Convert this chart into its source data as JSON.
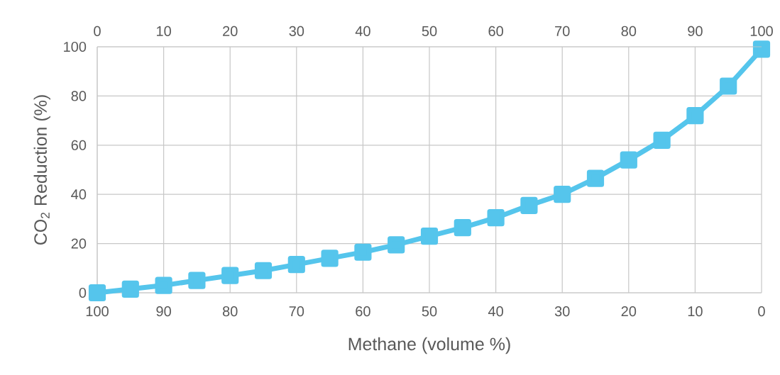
{
  "chart_data": {
    "type": "line",
    "xlabel": "Methane (volume %)",
    "ylabel": "CO$_{2}$ Reduction (%)",
    "x": [
      100,
      95,
      90,
      85,
      80,
      75,
      70,
      65,
      60,
      55,
      50,
      45,
      40,
      35,
      30,
      25,
      20,
      15,
      10,
      5,
      0
    ],
    "series": [
      {
        "color": "#55c5ec",
        "values": [
          0,
          1.5,
          3,
          5,
          7,
          9,
          11.5,
          14,
          16.5,
          19.5,
          23,
          26.5,
          30.5,
          35.5,
          40,
          46.5,
          54,
          62,
          72,
          84,
          99
        ]
      }
    ],
    "xlim": [
      100,
      0
    ],
    "xticks": [
      100,
      90,
      80,
      70,
      60,
      50,
      40,
      30,
      20,
      10,
      0
    ],
    "x2lim": [
      0,
      100
    ],
    "x2ticks": [
      0,
      10,
      20,
      30,
      40,
      50,
      60,
      70,
      80,
      90,
      100
    ],
    "ylim": [
      0,
      100
    ],
    "yticks": [
      0,
      20,
      40,
      60,
      80,
      100
    ],
    "grid": true,
    "marker": "square",
    "line_style": "solid"
  }
}
